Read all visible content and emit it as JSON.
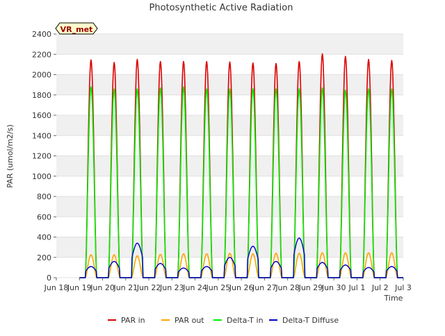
{
  "chart_data": {
    "type": "line",
    "title": "Photosynthetic Active Radiation",
    "xlabel": "Time",
    "ylabel": "PAR (umol/m2/s)",
    "badge": "VR_met",
    "ylim": [
      0,
      2400
    ],
    "yticks": [
      0,
      200,
      400,
      600,
      800,
      1000,
      1200,
      1400,
      1600,
      1800,
      2000,
      2200,
      2400
    ],
    "xlim": [
      0,
      15
    ],
    "xticks": [
      {
        "x": 0,
        "label": "Jun 18"
      },
      {
        "x": 1,
        "label": "Jun 19"
      },
      {
        "x": 2,
        "label": "Jun 20"
      },
      {
        "x": 3,
        "label": "Jun 21"
      },
      {
        "x": 4,
        "label": "Jun 22"
      },
      {
        "x": 5,
        "label": "Jun 23"
      },
      {
        "x": 6,
        "label": "Jun 24"
      },
      {
        "x": 7,
        "label": "Jun 25"
      },
      {
        "x": 8,
        "label": "Jun 26"
      },
      {
        "x": 9,
        "label": "Jun 27"
      },
      {
        "x": 10,
        "label": "Jun 28"
      },
      {
        "x": 11,
        "label": "Jun 29"
      },
      {
        "x": 12,
        "label": "Jun 30"
      },
      {
        "x": 13,
        "label": "Jul 1"
      },
      {
        "x": 14,
        "label": "Jul 2"
      },
      {
        "x": 15,
        "label": "Jul 3"
      }
    ],
    "grid": "horizontal-bands",
    "legend_position": "bottom",
    "days": [
      {
        "date": "Jun 18",
        "par_in": 2145,
        "par_out": 225,
        "delta_t_in": 1880,
        "diffuse": 110
      },
      {
        "date": "Jun 19",
        "par_in": 2120,
        "par_out": 225,
        "delta_t_in": 1860,
        "diffuse": 160
      },
      {
        "date": "Jun 20",
        "par_in": 2150,
        "par_out": 215,
        "delta_t_in": 1860,
        "diffuse": 340
      },
      {
        "date": "Jun 21",
        "par_in": 2130,
        "par_out": 230,
        "delta_t_in": 1870,
        "diffuse": 140
      },
      {
        "date": "Jun 22",
        "par_in": 2130,
        "par_out": 235,
        "delta_t_in": 1880,
        "diffuse": 95
      },
      {
        "date": "Jun 23",
        "par_in": 2130,
        "par_out": 235,
        "delta_t_in": 1860,
        "diffuse": 110
      },
      {
        "date": "Jun 24",
        "par_in": 2125,
        "par_out": 240,
        "delta_t_in": 1860,
        "diffuse": 200
      },
      {
        "date": "Jun 25",
        "par_in": 2115,
        "par_out": 235,
        "delta_t_in": 1860,
        "diffuse": 310
      },
      {
        "date": "Jun 26",
        "par_in": 2110,
        "par_out": 240,
        "delta_t_in": 1860,
        "diffuse": 160
      },
      {
        "date": "Jun 27",
        "par_in": 2130,
        "par_out": 240,
        "delta_t_in": 1860,
        "diffuse": 390
      },
      {
        "date": "Jun 28",
        "par_in": 2205,
        "par_out": 245,
        "delta_t_in": 1870,
        "diffuse": 150
      },
      {
        "date": "Jun 29",
        "par_in": 2180,
        "par_out": 245,
        "delta_t_in": 1850,
        "diffuse": 125
      },
      {
        "date": "Jun 30",
        "par_in": 2150,
        "par_out": 245,
        "delta_t_in": 1860,
        "diffuse": 100
      },
      {
        "date": "Jul 1",
        "par_in": 2140,
        "par_out": 245,
        "delta_t_in": 1860,
        "diffuse": 110
      }
    ],
    "series": [
      {
        "name": "PAR in",
        "key": "par_in",
        "color": "#dd0000"
      },
      {
        "name": "PAR out",
        "key": "par_out",
        "color": "#ffa500"
      },
      {
        "name": "Delta-T in",
        "key": "delta_t_in",
        "color": "#00ee00"
      },
      {
        "name": "Delta-T Diffuse",
        "key": "diffuse",
        "color": "#0000cc"
      }
    ]
  }
}
